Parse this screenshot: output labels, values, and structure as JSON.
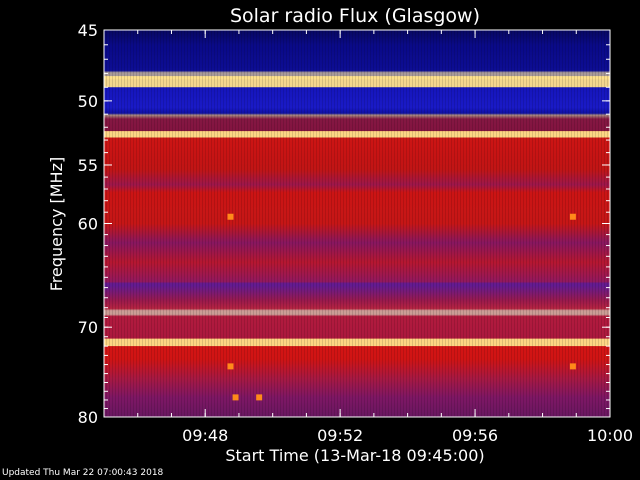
{
  "chart_data": {
    "type": "heatmap",
    "title": "Solar radio Flux (Glasgow)",
    "xlabel": "Start Time (13-Mar-18 09:45:00)",
    "ylabel": "Frequency [MHz]",
    "xlim": [
      "09:45:00",
      "10:00:00"
    ],
    "ylim": [
      45,
      80
    ],
    "x_ticks": [
      "09:48",
      "09:52",
      "09:56",
      "10:00"
    ],
    "y_ticks": [
      45,
      50,
      55,
      60,
      70,
      80
    ],
    "y_tick_labels": [
      "45",
      "50",
      "55",
      "60",
      "70",
      "80"
    ],
    "colors": {
      "background": "#000000",
      "low": "#0a0a8c",
      "mid": "#e01515",
      "high": "#ffe08a"
    },
    "bands": [
      {
        "from": 45.0,
        "to": 48.2,
        "level": "low"
      },
      {
        "from": 48.2,
        "to": 49.0,
        "level": "high"
      },
      {
        "from": 49.0,
        "to": 52.3,
        "level": "low"
      },
      {
        "from": 52.3,
        "to": 52.8,
        "level": "high"
      },
      {
        "from": 52.8,
        "to": 65.5,
        "level": "mid"
      },
      {
        "from": 65.5,
        "to": 71.2,
        "level": "mid-low"
      },
      {
        "from": 71.2,
        "to": 72.0,
        "level": "high"
      },
      {
        "from": 72.0,
        "to": 80.0,
        "level": "mid"
      }
    ],
    "spots": [
      {
        "t": "09:48:45",
        "f": 59.4
      },
      {
        "t": "09:58:54",
        "f": 59.4
      },
      {
        "t": "09:48:45",
        "f": 74.2
      },
      {
        "t": "09:58:54",
        "f": 74.2
      },
      {
        "t": "09:48:54",
        "f": 77.7
      },
      {
        "t": "09:49:36",
        "f": 77.7
      }
    ]
  },
  "footer": {
    "updated": "Updated Thu Mar 22 07:00:43 2018"
  }
}
